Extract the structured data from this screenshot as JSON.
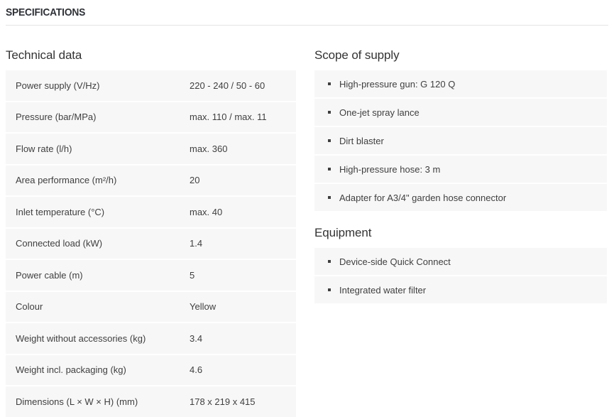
{
  "header": {
    "title": "SPECIFICATIONS"
  },
  "technical_data": {
    "heading": "Technical data",
    "rows": [
      {
        "label": "Power supply (V/Hz)",
        "value": "220 - 240 / 50 - 60"
      },
      {
        "label": "Pressure (bar/MPa)",
        "value": "max. 110 / max. 11"
      },
      {
        "label": "Flow rate (l/h)",
        "value": "max. 360"
      },
      {
        "label": "Area performance (m²/h)",
        "value": "20"
      },
      {
        "label": "Inlet temperature (°C)",
        "value": "max. 40"
      },
      {
        "label": "Connected load (kW)",
        "value": "1.4"
      },
      {
        "label": "Power cable (m)",
        "value": "5"
      },
      {
        "label": "Colour",
        "value": "Yellow"
      },
      {
        "label": "Weight without accessories (kg)",
        "value": "3.4"
      },
      {
        "label": "Weight incl. packaging (kg)",
        "value": "4.6"
      },
      {
        "label": "Dimensions (L × W × H) (mm)",
        "value": "178 x 219 x 415"
      }
    ]
  },
  "scope_of_supply": {
    "heading": "Scope of supply",
    "items": [
      "High-pressure gun: G 120 Q",
      "One-jet spray lance",
      "Dirt blaster",
      "High-pressure hose: 3 m",
      "Adapter for A3/4\" garden hose connector"
    ]
  },
  "equipment": {
    "heading": "Equipment",
    "items": [
      "Device-side Quick Connect",
      "Integrated water filter"
    ]
  },
  "colors": {
    "row_background": "#f7f7f7",
    "text": "#3f3f3f",
    "heading": "#333333",
    "divider": "#e4e4e4"
  }
}
